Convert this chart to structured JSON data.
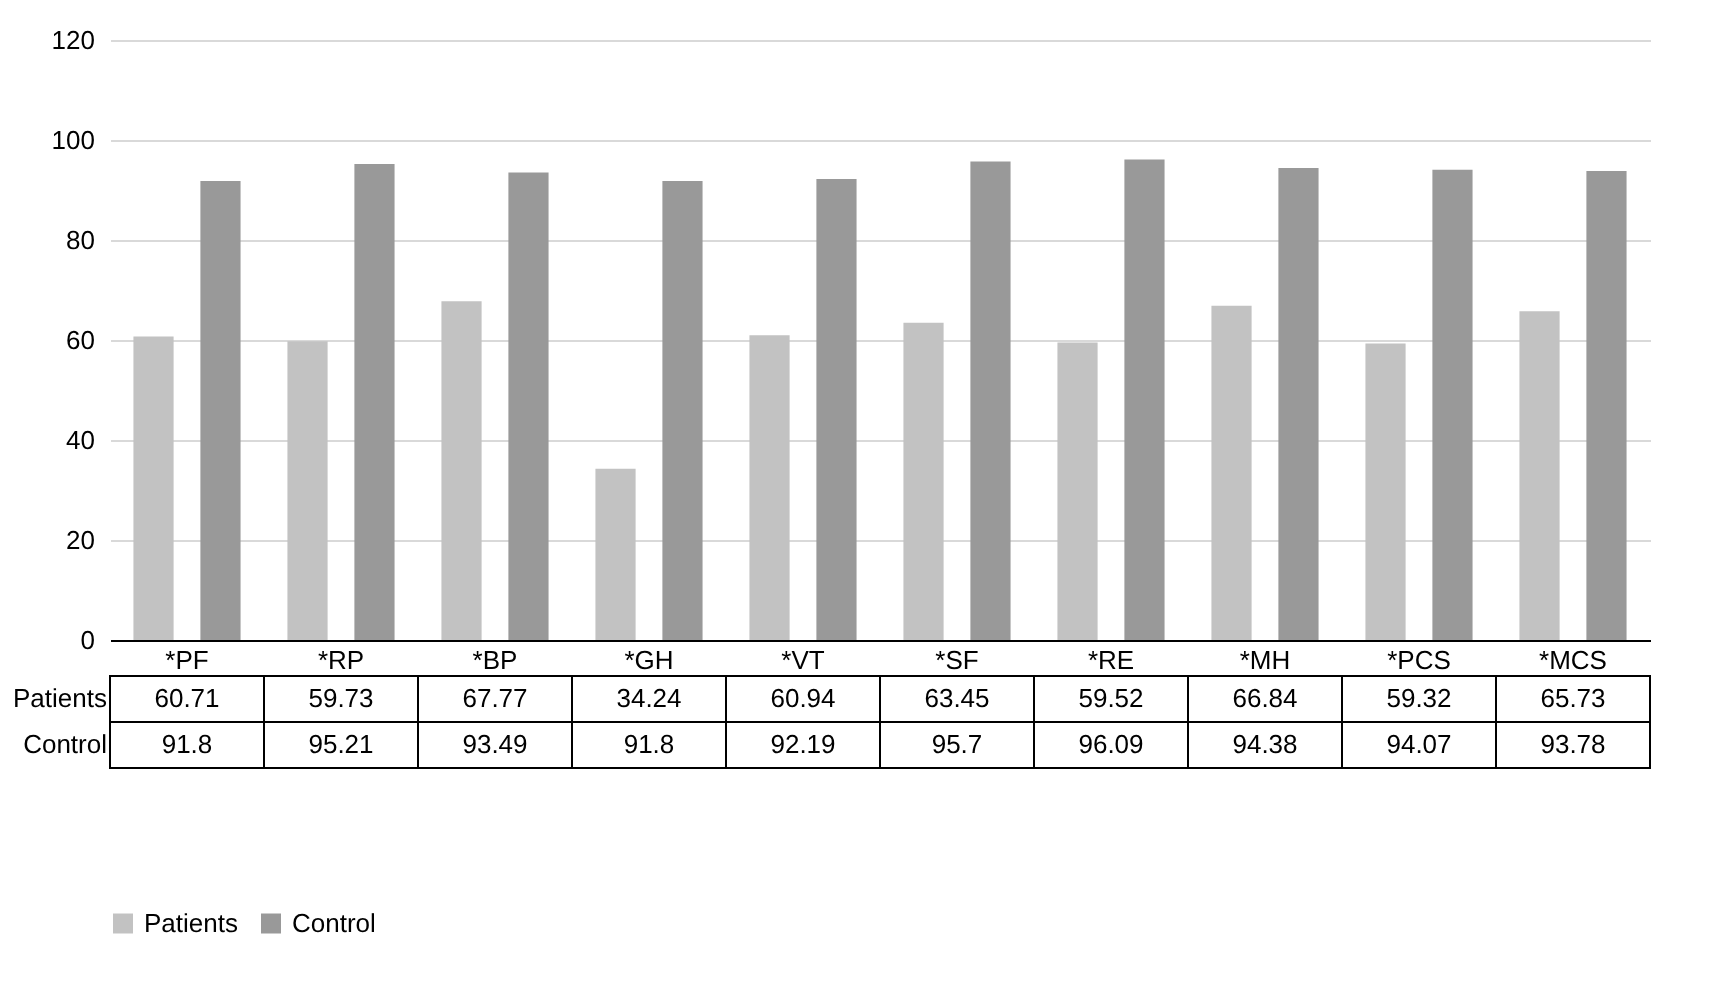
{
  "chart_data": {
    "type": "bar",
    "categories": [
      "*PF",
      "*RP",
      "*BP",
      "*GH",
      "*VT",
      "*SF",
      "*RE",
      "*MH",
      "*PCS",
      "*MCS"
    ],
    "series": [
      {
        "name": "Patients",
        "color": "#c2c2c2",
        "values": [
          60.71,
          59.73,
          67.77,
          34.24,
          60.94,
          63.45,
          59.52,
          66.84,
          59.32,
          65.73
        ]
      },
      {
        "name": "Control",
        "color": "#999999",
        "values": [
          91.8,
          95.21,
          93.49,
          91.8,
          92.19,
          95.7,
          96.09,
          94.38,
          94.07,
          93.78
        ]
      }
    ],
    "ylim": [
      0,
      120
    ],
    "yticks": [
      0,
      20,
      40,
      60,
      80,
      100,
      120
    ],
    "grid": "y",
    "legend": "bottom",
    "data_labels": true
  }
}
